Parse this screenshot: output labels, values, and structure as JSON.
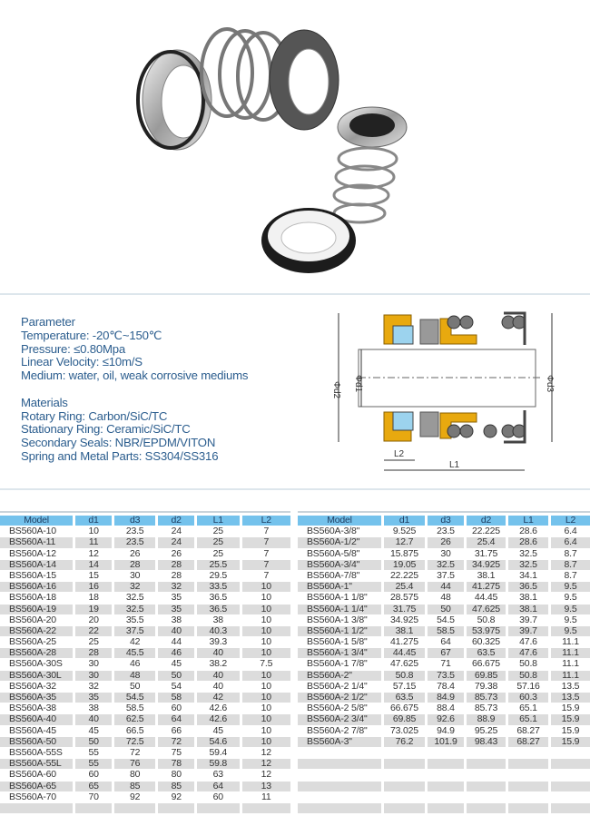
{
  "parameter": {
    "heading": "Parameter",
    "lines": [
      "Temperature: -20℃~150℃",
      "Pressure: ≤0.80Mpa",
      "Linear Velocity: ≤10m/S",
      "Medium: water, oil, weak corrosive mediums"
    ]
  },
  "materials": {
    "heading": "Materials",
    "lines": [
      "Rotary Ring: Carbon/SiC/TC",
      "Stationary Ring: Ceramic/SiC/TC",
      "Secondary Seals: NBR/EPDM/VITON",
      "Spring and Metal Parts: SS304/SS316"
    ]
  },
  "diagram": {
    "labels": {
      "d2": "Φd2",
      "d1": "Φd1",
      "d3": "Φd3",
      "l2": "L2",
      "l1": "L1"
    }
  },
  "colors": {
    "header": "#74c2ec",
    "text": "#2b5d8e",
    "row_alt": "#dcdcdc"
  },
  "columns": [
    "Model",
    "d1",
    "d3",
    "d2",
    "L1",
    "L2"
  ],
  "table_left": [
    [
      "BS560A-10",
      "10",
      "23.5",
      "24",
      "25",
      "7"
    ],
    [
      "BS560A-11",
      "11",
      "23.5",
      "24",
      "25",
      "7"
    ],
    [
      "BS560A-12",
      "12",
      "26",
      "26",
      "25",
      "7"
    ],
    [
      "BS560A-14",
      "14",
      "28",
      "28",
      "25.5",
      "7"
    ],
    [
      "BS560A-15",
      "15",
      "30",
      "28",
      "29.5",
      "7"
    ],
    [
      "BS560A-16",
      "16",
      "32",
      "32",
      "33.5",
      "10"
    ],
    [
      "BS560A-18",
      "18",
      "32.5",
      "35",
      "36.5",
      "10"
    ],
    [
      "BS560A-19",
      "19",
      "32.5",
      "35",
      "36.5",
      "10"
    ],
    [
      "BS560A-20",
      "20",
      "35.5",
      "38",
      "38",
      "10"
    ],
    [
      "BS560A-22",
      "22",
      "37.5",
      "40",
      "40.3",
      "10"
    ],
    [
      "BS560A-25",
      "25",
      "42",
      "44",
      "39.3",
      "10"
    ],
    [
      "BS560A-28",
      "28",
      "45.5",
      "46",
      "40",
      "10"
    ],
    [
      "BS560A-30S",
      "30",
      "46",
      "45",
      "38.2",
      "7.5"
    ],
    [
      "BS560A-30L",
      "30",
      "48",
      "50",
      "40",
      "10"
    ],
    [
      "BS560A-32",
      "32",
      "50",
      "54",
      "40",
      "10"
    ],
    [
      "BS560A-35",
      "35",
      "54.5",
      "58",
      "42",
      "10"
    ],
    [
      "BS560A-38",
      "38",
      "58.5",
      "60",
      "42.6",
      "10"
    ],
    [
      "BS560A-40",
      "40",
      "62.5",
      "64",
      "42.6",
      "10"
    ],
    [
      "BS560A-45",
      "45",
      "66.5",
      "66",
      "45",
      "10"
    ],
    [
      "BS560A-50",
      "50",
      "72.5",
      "72",
      "54.6",
      "10"
    ],
    [
      "BS560A-55S",
      "55",
      "72",
      "75",
      "59.4",
      "12"
    ],
    [
      "BS560A-55L",
      "55",
      "76",
      "78",
      "59.8",
      "12"
    ],
    [
      "BS560A-60",
      "60",
      "80",
      "80",
      "63",
      "12"
    ],
    [
      "BS560A-65",
      "65",
      "85",
      "85",
      "64",
      "13"
    ],
    [
      "BS560A-70",
      "70",
      "92",
      "92",
      "60",
      "11"
    ]
  ],
  "table_right": [
    [
      "BS560A-3/8\"",
      "9.525",
      "23.5",
      "22.225",
      "28.6",
      "6.4"
    ],
    [
      "BS560A-1/2\"",
      "12.7",
      "26",
      "25.4",
      "28.6",
      "6.4"
    ],
    [
      "BS560A-5/8\"",
      "15.875",
      "30",
      "31.75",
      "32.5",
      "8.7"
    ],
    [
      "BS560A-3/4\"",
      "19.05",
      "32.5",
      "34.925",
      "32.5",
      "8.7"
    ],
    [
      "BS560A-7/8\"",
      "22.225",
      "37.5",
      "38.1",
      "34.1",
      "8.7"
    ],
    [
      "BS560A-1\"",
      "25.4",
      "44",
      "41.275",
      "36.5",
      "9.5"
    ],
    [
      "BS560A-1 1/8\"",
      "28.575",
      "48",
      "44.45",
      "38.1",
      "9.5"
    ],
    [
      "BS560A-1 1/4\"",
      "31.75",
      "50",
      "47.625",
      "38.1",
      "9.5"
    ],
    [
      "BS560A-1 3/8\"",
      "34.925",
      "54.5",
      "50.8",
      "39.7",
      "9.5"
    ],
    [
      "BS560A-1 1/2\"",
      "38.1",
      "58.5",
      "53.975",
      "39.7",
      "9.5"
    ],
    [
      "BS560A-1 5/8\"",
      "41.275",
      "64",
      "60.325",
      "47.6",
      "11.1"
    ],
    [
      "BS560A-1 3/4\"",
      "44.45",
      "67",
      "63.5",
      "47.6",
      "11.1"
    ],
    [
      "BS560A-1 7/8\"",
      "47.625",
      "71",
      "66.675",
      "50.8",
      "11.1"
    ],
    [
      "BS560A-2\"",
      "50.8",
      "73.5",
      "69.85",
      "50.8",
      "11.1"
    ],
    [
      "BS560A-2 1/4\"",
      "57.15",
      "78.4",
      "79.38",
      "57.16",
      "13.5"
    ],
    [
      "BS560A-2 1/2\"",
      "63.5",
      "84.9",
      "85.73",
      "60.3",
      "13.5"
    ],
    [
      "BS560A-2 5/8\"",
      "66.675",
      "88.4",
      "85.73",
      "65.1",
      "15.9"
    ],
    [
      "BS560A-2 3/4\"",
      "69.85",
      "92.6",
      "88.9",
      "65.1",
      "15.9"
    ],
    [
      "BS560A-2 7/8\"",
      "73.025",
      "94.9",
      "95.25",
      "68.27",
      "15.9"
    ],
    [
      "BS560A-3\"",
      "76.2",
      "101.9",
      "98.43",
      "68.27",
      "15.9"
    ]
  ]
}
